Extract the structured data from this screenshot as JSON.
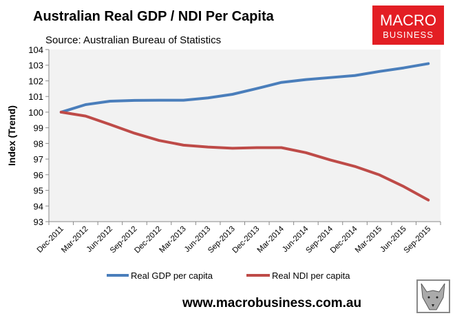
{
  "logo": {
    "line1": "MACRO",
    "line2": "BUSINESS",
    "color": "#e31e24"
  },
  "footer": {
    "url": "www.macrobusiness.com.au"
  },
  "chart_data": {
    "type": "line",
    "title": "Australian Real GDP / NDI Per Capita",
    "subtitle": "Source: Australian Bureau of Statistics",
    "xlabel": "",
    "ylabel": "Index (Trend)",
    "ylim": [
      93,
      104
    ],
    "yticks": [
      93,
      94,
      95,
      96,
      97,
      98,
      99,
      100,
      101,
      102,
      103,
      104
    ],
    "grid": false,
    "legend_position": "bottom",
    "categories": [
      "Dec-2011",
      "Mar-2012",
      "Jun-2012",
      "Sep-2012",
      "Dec-2012",
      "Mar-2013",
      "Jun-2013",
      "Sep-2013",
      "Dec-2013",
      "Mar-2014",
      "Jun-2014",
      "Sep-2014",
      "Dec-2014",
      "Mar-2015",
      "Jun-2015",
      "Sep-2015"
    ],
    "series": [
      {
        "name": "Real GDP per capita",
        "color": "#4a7ebb",
        "values": [
          100.0,
          100.48,
          100.7,
          100.75,
          100.76,
          100.76,
          100.91,
          101.14,
          101.51,
          101.9,
          102.08,
          102.21,
          102.34,
          102.6,
          102.83,
          103.1
        ]
      },
      {
        "name": "Real NDI per capita",
        "color": "#be4b48",
        "values": [
          100.0,
          99.75,
          99.21,
          98.65,
          98.19,
          97.89,
          97.77,
          97.69,
          97.73,
          97.73,
          97.41,
          96.94,
          96.53,
          95.99,
          95.24,
          94.38
        ]
      }
    ]
  }
}
